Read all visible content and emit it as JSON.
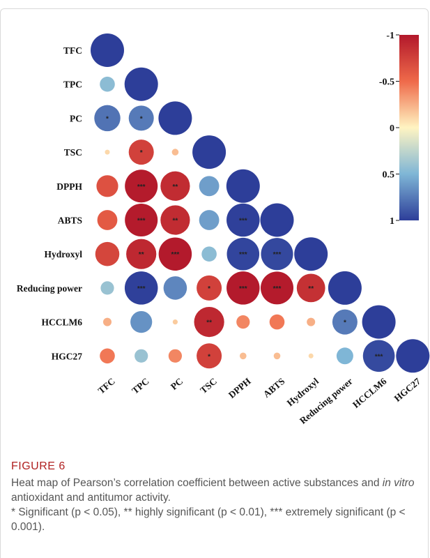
{
  "chart_data": {
    "type": "heatmap",
    "subtype": "correlation-circles-lower-triangle",
    "variables": [
      "TFC",
      "TPC",
      "PC",
      "TSC",
      "DPPH",
      "ABTS",
      "Hydroxyl",
      "Reducing power",
      "HCCLM6",
      "HGC27"
    ],
    "colorbar": {
      "ticks": [
        "-1",
        "-0.5",
        "0",
        "0.5",
        "1"
      ],
      "values": [
        -1,
        -0.5,
        0,
        0.5,
        1
      ],
      "colors": [
        "#b2182b",
        "#ef8a62",
        "#fddbc7",
        "#d1e5f0",
        "#67a9cf",
        "#2d3e99"
      ],
      "high_color": "#2d3e99",
      "low_color": "#b2182b"
    },
    "cells": [
      {
        "row": "TFC",
        "col": "TFC",
        "r": 1.0,
        "sig": ""
      },
      {
        "row": "TPC",
        "col": "TFC",
        "r": 0.45,
        "sig": ""
      },
      {
        "row": "TPC",
        "col": "TPC",
        "r": 1.0,
        "sig": ""
      },
      {
        "row": "PC",
        "col": "TFC",
        "r": 0.78,
        "sig": "*"
      },
      {
        "row": "PC",
        "col": "TPC",
        "r": 0.75,
        "sig": "*"
      },
      {
        "row": "PC",
        "col": "PC",
        "r": 1.0,
        "sig": ""
      },
      {
        "row": "TSC",
        "col": "TFC",
        "r": -0.1,
        "sig": ""
      },
      {
        "row": "TSC",
        "col": "TPC",
        "r": -0.75,
        "sig": "*"
      },
      {
        "row": "TSC",
        "col": "PC",
        "r": -0.2,
        "sig": ""
      },
      {
        "row": "TSC",
        "col": "TSC",
        "r": 1.0,
        "sig": ""
      },
      {
        "row": "DPPH",
        "col": "TFC",
        "r": -0.65,
        "sig": ""
      },
      {
        "row": "DPPH",
        "col": "TPC",
        "r": -0.98,
        "sig": "***"
      },
      {
        "row": "DPPH",
        "col": "PC",
        "r": -0.88,
        "sig": "**"
      },
      {
        "row": "DPPH",
        "col": "TSC",
        "r": 0.6,
        "sig": ""
      },
      {
        "row": "DPPH",
        "col": "DPPH",
        "r": 1.0,
        "sig": ""
      },
      {
        "row": "ABTS",
        "col": "TFC",
        "r": -0.6,
        "sig": ""
      },
      {
        "row": "ABTS",
        "col": "TPC",
        "r": -0.98,
        "sig": "***"
      },
      {
        "row": "ABTS",
        "col": "PC",
        "r": -0.88,
        "sig": "**"
      },
      {
        "row": "ABTS",
        "col": "TSC",
        "r": 0.6,
        "sig": ""
      },
      {
        "row": "ABTS",
        "col": "DPPH",
        "r": 0.99,
        "sig": "***"
      },
      {
        "row": "ABTS",
        "col": "ABTS",
        "r": 1.0,
        "sig": ""
      },
      {
        "row": "Hydroxyl",
        "col": "TFC",
        "r": -0.72,
        "sig": ""
      },
      {
        "row": "Hydroxyl",
        "col": "TPC",
        "r": -0.9,
        "sig": "**"
      },
      {
        "row": "Hydroxyl",
        "col": "PC",
        "r": -0.99,
        "sig": "***"
      },
      {
        "row": "Hydroxyl",
        "col": "TSC",
        "r": 0.45,
        "sig": ""
      },
      {
        "row": "Hydroxyl",
        "col": "DPPH",
        "r": 0.97,
        "sig": "***"
      },
      {
        "row": "Hydroxyl",
        "col": "ABTS",
        "r": 0.96,
        "sig": "***"
      },
      {
        "row": "Hydroxyl",
        "col": "Hydroxyl",
        "r": 1.0,
        "sig": ""
      },
      {
        "row": "Reducing power",
        "col": "TFC",
        "r": 0.4,
        "sig": ""
      },
      {
        "row": "Reducing power",
        "col": "TPC",
        "r": 0.99,
        "sig": "***"
      },
      {
        "row": "Reducing power",
        "col": "PC",
        "r": 0.7,
        "sig": ""
      },
      {
        "row": "Reducing power",
        "col": "TSC",
        "r": -0.75,
        "sig": "*"
      },
      {
        "row": "Reducing power",
        "col": "DPPH",
        "r": -0.99,
        "sig": "***"
      },
      {
        "row": "Reducing power",
        "col": "ABTS",
        "r": -0.98,
        "sig": "***"
      },
      {
        "row": "Reducing power",
        "col": "Hydroxyl",
        "r": -0.85,
        "sig": "**"
      },
      {
        "row": "Reducing power",
        "col": "Reducing power",
        "r": 1.0,
        "sig": ""
      },
      {
        "row": "HCCLM6",
        "col": "TFC",
        "r": -0.25,
        "sig": ""
      },
      {
        "row": "HCCLM6",
        "col": "TPC",
        "r": 0.65,
        "sig": ""
      },
      {
        "row": "HCCLM6",
        "col": "PC",
        "r": -0.15,
        "sig": ""
      },
      {
        "row": "HCCLM6",
        "col": "TSC",
        "r": -0.9,
        "sig": "**"
      },
      {
        "row": "HCCLM6",
        "col": "DPPH",
        "r": -0.4,
        "sig": ""
      },
      {
        "row": "HCCLM6",
        "col": "ABTS",
        "r": -0.45,
        "sig": ""
      },
      {
        "row": "HCCLM6",
        "col": "Hydroxyl",
        "r": -0.25,
        "sig": ""
      },
      {
        "row": "HCCLM6",
        "col": "Reducing power",
        "r": 0.75,
        "sig": "*"
      },
      {
        "row": "HCCLM6",
        "col": "HCCLM6",
        "r": 1.0,
        "sig": ""
      },
      {
        "row": "HGC27",
        "col": "TFC",
        "r": -0.45,
        "sig": ""
      },
      {
        "row": "HGC27",
        "col": "TPC",
        "r": 0.4,
        "sig": ""
      },
      {
        "row": "HGC27",
        "col": "PC",
        "r": -0.4,
        "sig": ""
      },
      {
        "row": "HGC27",
        "col": "TSC",
        "r": -0.75,
        "sig": "*"
      },
      {
        "row": "HGC27",
        "col": "DPPH",
        "r": -0.2,
        "sig": ""
      },
      {
        "row": "HGC27",
        "col": "ABTS",
        "r": -0.2,
        "sig": ""
      },
      {
        "row": "HGC27",
        "col": "Hydroxyl",
        "r": -0.1,
        "sig": ""
      },
      {
        "row": "HGC27",
        "col": "Reducing power",
        "r": 0.5,
        "sig": ""
      },
      {
        "row": "HGC27",
        "col": "HCCLM6",
        "r": 0.95,
        "sig": "***"
      },
      {
        "row": "HGC27",
        "col": "HGC27",
        "r": 1.0,
        "sig": ""
      }
    ]
  },
  "caption": {
    "label": "FIGURE 6",
    "text_before": "Heat map of Pearson’s correlation coefficient between active substances and ",
    "text_italic": "in vitro",
    "text_after": " antioxidant and antitumor activity.",
    "note": "* Significant (p < 0.05), ** highly significant (p < 0.01), *** extremely significant (p < 0.001)."
  }
}
